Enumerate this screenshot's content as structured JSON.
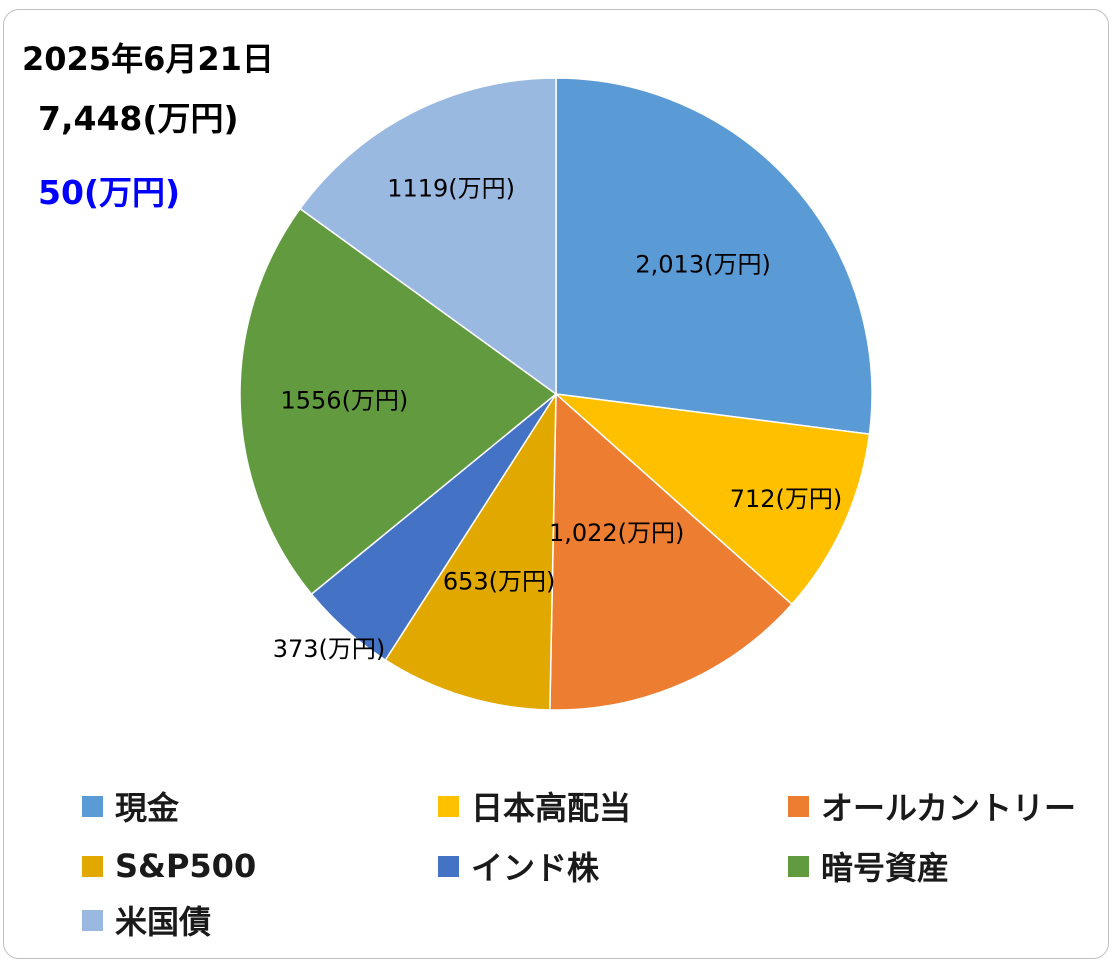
{
  "header": {
    "date": "2025年6月21日",
    "total": "7,448(万円)",
    "change": "50(万円)",
    "change_color": "#0000ff"
  },
  "chart_data": {
    "type": "pie",
    "start_angle_deg": 0,
    "direction": "clockwise",
    "slices": [
      {
        "name": "現金",
        "value": 2013,
        "label": "2,013(万円)",
        "color": "#5b9bd5"
      },
      {
        "name": "日本高配当",
        "value": 712,
        "label": "712(万円)",
        "color": "#ffc000"
      },
      {
        "name": "オールカントリー",
        "value": 1022,
        "label": "1,022(万円)",
        "color": "#ed7d31"
      },
      {
        "name": "S&P500",
        "value": 653,
        "label": "653(万円)",
        "color": "#e1a800"
      },
      {
        "name": "インド株",
        "value": 373,
        "label": "373(万円)",
        "color": "#4472c4"
      },
      {
        "name": "暗号資産",
        "value": 1556,
        "label": "1556(万円)",
        "color": "#629b3f"
      },
      {
        "name": "米国債",
        "value": 1119,
        "label": "1119(万円)",
        "color": "#9ab9e0"
      }
    ],
    "legend_position": "bottom"
  }
}
